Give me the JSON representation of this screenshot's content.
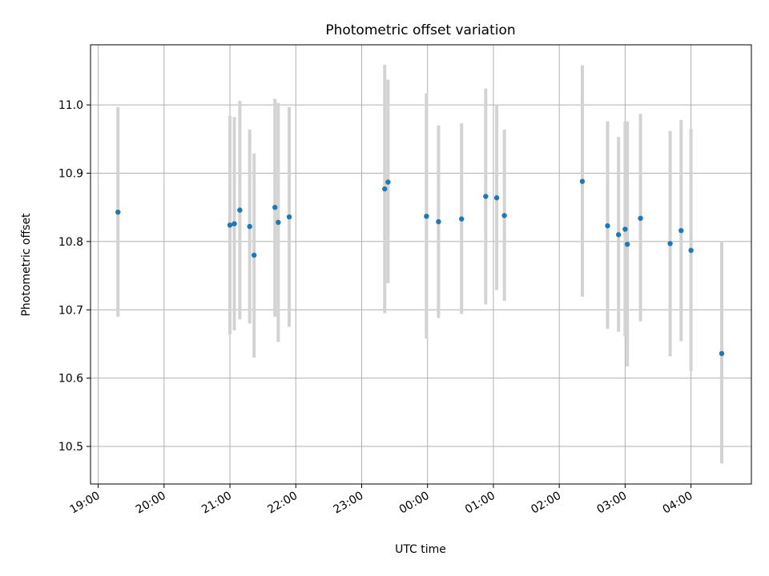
{
  "chart_data": {
    "type": "scatter",
    "title": "Photometric offset variation",
    "xlabel": "UTC time",
    "ylabel": "Photometric offset",
    "grid": true,
    "x_ticks": [
      "19:00",
      "20:00",
      "21:00",
      "22:00",
      "23:00",
      "00:00",
      "01:00",
      "02:00",
      "03:00",
      "04:00"
    ],
    "y_ticks": [
      "10.5",
      "10.6",
      "10.7",
      "10.8",
      "10.9",
      "11.0"
    ],
    "xlim": [
      "19:00",
      "04:55"
    ],
    "ylim": [
      10.445,
      11.088
    ],
    "colors": {
      "points": "#1f77b4",
      "errorbars": "#d3d3d3",
      "grid": "#b0b0b0"
    },
    "points": [
      {
        "x": "19:18",
        "y": 10.843,
        "ylow": 10.69,
        "yhigh": 10.997
      },
      {
        "x": "21:00",
        "y": 10.824,
        "ylow": 10.664,
        "yhigh": 10.984
      },
      {
        "x": "21:04",
        "y": 10.826,
        "ylow": 10.67,
        "yhigh": 10.982
      },
      {
        "x": "21:09",
        "y": 10.846,
        "ylow": 10.686,
        "yhigh": 11.006
      },
      {
        "x": "21:18",
        "y": 10.822,
        "ylow": 10.68,
        "yhigh": 10.964
      },
      {
        "x": "21:22",
        "y": 10.78,
        "ylow": 10.63,
        "yhigh": 10.929
      },
      {
        "x": "21:41",
        "y": 10.85,
        "ylow": 10.69,
        "yhigh": 11.009
      },
      {
        "x": "21:44",
        "y": 10.828,
        "ylow": 10.653,
        "yhigh": 11.003
      },
      {
        "x": "21:54",
        "y": 10.836,
        "ylow": 10.675,
        "yhigh": 10.997
      },
      {
        "x": "23:21",
        "y": 10.877,
        "ylow": 10.695,
        "yhigh": 11.059
      },
      {
        "x": "23:24",
        "y": 10.887,
        "ylow": 10.739,
        "yhigh": 11.037
      },
      {
        "x": "23:59",
        "y": 10.837,
        "ylow": 10.658,
        "yhigh": 11.017
      },
      {
        "x": "00:10",
        "y": 10.829,
        "ylow": 10.688,
        "yhigh": 10.97
      },
      {
        "x": "00:31",
        "y": 10.833,
        "ylow": 10.694,
        "yhigh": 10.973
      },
      {
        "x": "00:53",
        "y": 10.866,
        "ylow": 10.708,
        "yhigh": 11.024
      },
      {
        "x": "01:03",
        "y": 10.864,
        "ylow": 10.729,
        "yhigh": 10.999
      },
      {
        "x": "01:10",
        "y": 10.838,
        "ylow": 10.713,
        "yhigh": 10.964
      },
      {
        "x": "02:21",
        "y": 10.888,
        "ylow": 10.719,
        "yhigh": 11.058
      },
      {
        "x": "02:44",
        "y": 10.823,
        "ylow": 10.672,
        "yhigh": 10.976
      },
      {
        "x": "02:54",
        "y": 10.81,
        "ylow": 10.668,
        "yhigh": 10.953
      },
      {
        "x": "03:00",
        "y": 10.818,
        "ylow": 10.661,
        "yhigh": 10.976
      },
      {
        "x": "03:02",
        "y": 10.796,
        "ylow": 10.617,
        "yhigh": 10.976
      },
      {
        "x": "03:14",
        "y": 10.834,
        "ylow": 10.683,
        "yhigh": 10.987
      },
      {
        "x": "03:41",
        "y": 10.797,
        "ylow": 10.632,
        "yhigh": 10.962
      },
      {
        "x": "03:51",
        "y": 10.816,
        "ylow": 10.654,
        "yhigh": 10.978
      },
      {
        "x": "04:00",
        "y": 10.787,
        "ylow": 10.61,
        "yhigh": 10.965
      },
      {
        "x": "04:28",
        "y": 10.636,
        "ylow": 10.475,
        "yhigh": 10.799
      }
    ]
  }
}
